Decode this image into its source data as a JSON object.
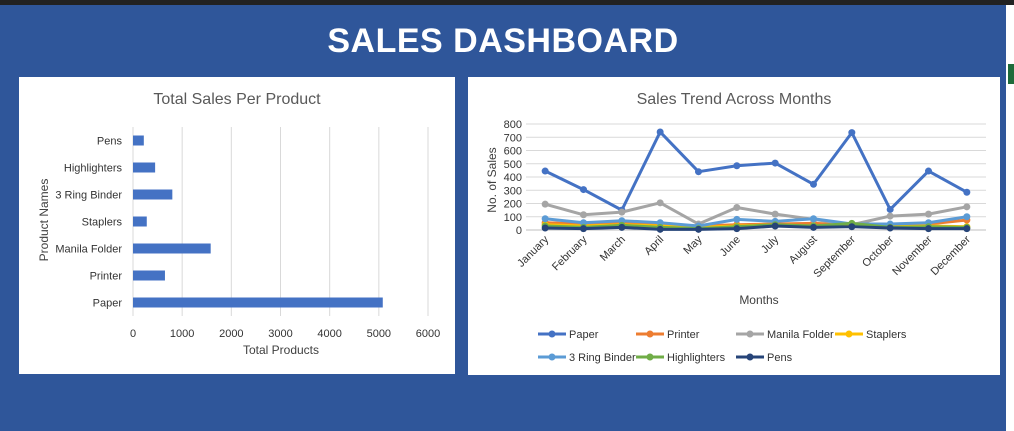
{
  "dashboard": {
    "title": "SALES DASHBOARD"
  },
  "colors": {
    "background": "#2f569a",
    "bar": "#4472c4"
  },
  "chart_data": [
    {
      "type": "bar",
      "orientation": "horizontal",
      "title": "Total Sales Per Product",
      "xlabel": "Total Products",
      "ylabel": "Product Names",
      "categories": [
        "Paper",
        "Printer",
        "Manila Folder",
        "Staplers",
        "3 Ring Binder",
        "Highlighters",
        "Pens"
      ],
      "values": [
        5080,
        650,
        1580,
        280,
        800,
        450,
        220
      ],
      "xlim": [
        0,
        6000
      ],
      "xticks": [
        0,
        1000,
        2000,
        3000,
        4000,
        5000,
        6000
      ],
      "grid": true,
      "color": "#4472c4"
    },
    {
      "type": "line",
      "title": "Sales Trend Across Months",
      "xlabel": "Months",
      "ylabel": "No. of Sales",
      "categories": [
        "January",
        "February",
        "March",
        "April",
        "May",
        "June",
        "July",
        "August",
        "September",
        "October",
        "November",
        "December"
      ],
      "ylim": [
        0,
        800
      ],
      "yticks": [
        0,
        100,
        200,
        300,
        400,
        500,
        600,
        700,
        800
      ],
      "grid": true,
      "legend": "bottom",
      "series": [
        {
          "name": "Paper",
          "color": "#4472c4",
          "values": [
            445,
            305,
            150,
            740,
            440,
            485,
            505,
            345,
            735,
            155,
            445,
            285
          ]
        },
        {
          "name": "Printer",
          "color": "#ed7d31",
          "values": [
            55,
            45,
            55,
            40,
            30,
            40,
            45,
            50,
            40,
            35,
            45,
            75
          ]
        },
        {
          "name": "Manila Folder",
          "color": "#a5a5a5",
          "values": [
            195,
            115,
            135,
            205,
            45,
            170,
            120,
            80,
            40,
            105,
            120,
            175
          ]
        },
        {
          "name": "Staplers",
          "color": "#ffc000",
          "values": [
            40,
            30,
            40,
            30,
            20,
            30,
            40,
            30,
            40,
            25,
            30,
            25
          ]
        },
        {
          "name": "3 Ring Binder",
          "color": "#5b9bd5",
          "values": [
            85,
            55,
            70,
            55,
            30,
            80,
            65,
            85,
            45,
            45,
            55,
            100
          ]
        },
        {
          "name": "Highlighters",
          "color": "#70ad47",
          "values": [
            30,
            20,
            35,
            20,
            10,
            25,
            40,
            30,
            50,
            20,
            25,
            20
          ]
        },
        {
          "name": "Pens",
          "color": "#264478",
          "values": [
            15,
            10,
            20,
            5,
            5,
            10,
            30,
            20,
            25,
            15,
            10,
            10
          ]
        }
      ]
    }
  ]
}
